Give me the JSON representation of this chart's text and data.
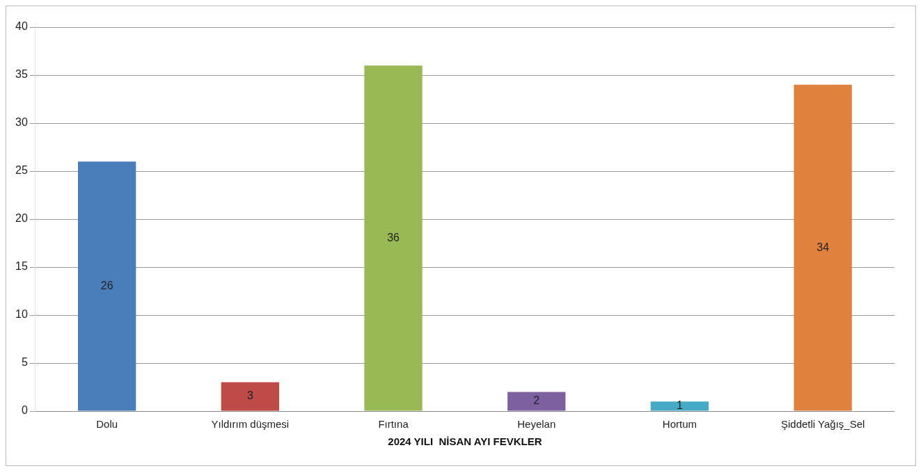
{
  "chart_data": {
    "type": "bar",
    "xlabel": "2024 YILI  NİSAN AYI FEVKLER",
    "categories": [
      "Dolu",
      "Yıldırım düşmesi",
      "Fırtına",
      "Heyelan",
      "Hortum",
      "Şiddetli Yağış_Sel"
    ],
    "values": [
      26,
      3,
      36,
      2,
      1,
      34
    ],
    "colors": [
      "#4a7ebb",
      "#be4b48",
      "#98b954",
      "#7d60a0",
      "#46aac5",
      "#e0823d"
    ],
    "ylim": [
      0,
      40
    ],
    "yticks": [
      0,
      5,
      10,
      15,
      20,
      25,
      30,
      35,
      40
    ],
    "grid": "y",
    "data_labels": true,
    "legend": false
  }
}
